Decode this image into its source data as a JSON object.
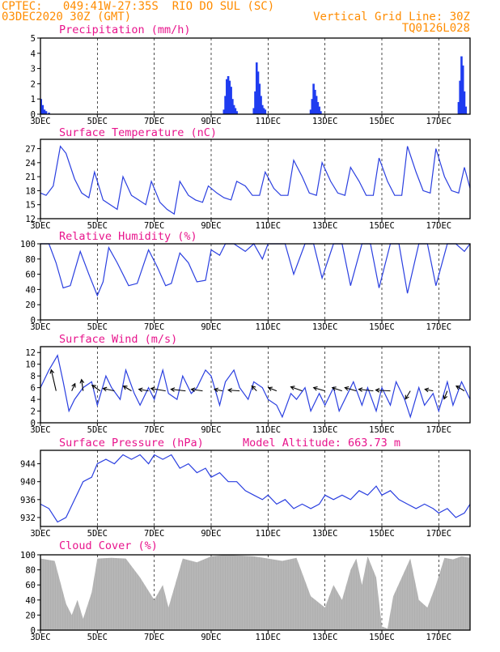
{
  "header": {
    "line1_left": "CPTEC:   049:41W-27:35S  RIO DO SUL (SC)",
    "line2_left": "03DEC2020 30Z (GMT)",
    "line1_right": "Vertical Grid Line: 30Z",
    "line2_right": "TQ0126L028"
  },
  "colors": {
    "header": "#ff8c00",
    "title": "#e8148c",
    "series": "#2a3fe0",
    "bars": "#1f3cf0",
    "cloud": "#b0b0b0"
  },
  "x_ticks": [
    "3DEC",
    "5DEC",
    "7DEC",
    "9DEC",
    "11DEC",
    "13DEC",
    "15DEC",
    "17DEC"
  ],
  "x_tick_days": [
    3,
    5,
    7,
    9,
    11,
    13,
    15,
    17
  ],
  "x_range_days": [
    3,
    18.1
  ],
  "chart_data": [
    {
      "id": "precip",
      "type": "bar",
      "title": "Precipitation (mm/h)",
      "ylim": [
        0,
        5
      ],
      "yticks": [
        0,
        1,
        2,
        3,
        4,
        5
      ],
      "x": [
        3.02,
        3.08,
        3.14,
        3.2,
        3.3,
        9.45,
        9.5,
        9.55,
        9.6,
        9.65,
        9.7,
        9.75,
        9.8,
        9.85,
        9.9,
        10.5,
        10.55,
        10.6,
        10.65,
        10.7,
        10.75,
        10.8,
        10.85,
        10.9,
        12.5,
        12.55,
        12.6,
        12.65,
        12.7,
        12.75,
        12.8,
        12.85,
        17.7,
        17.75,
        17.8,
        17.85,
        17.9,
        17.95
      ],
      "values": [
        1.0,
        0.6,
        0.3,
        0.2,
        0.1,
        0.3,
        1.2,
        2.3,
        2.5,
        2.2,
        1.8,
        1.0,
        0.6,
        0.4,
        0.2,
        0.4,
        1.5,
        3.4,
        2.8,
        2.0,
        1.2,
        0.6,
        0.4,
        0.3,
        0.3,
        1.0,
        2.0,
        1.6,
        1.2,
        0.8,
        0.5,
        0.2,
        0.8,
        2.2,
        3.8,
        3.2,
        1.5,
        0.5
      ]
    },
    {
      "id": "temp",
      "type": "line",
      "title": "Surface Temperature (nC)",
      "ylim": [
        12,
        29
      ],
      "yticks": [
        12,
        15,
        18,
        21,
        24,
        27
      ],
      "x": [
        3,
        3.2,
        3.45,
        3.7,
        3.9,
        4.2,
        4.45,
        4.7,
        4.9,
        5.2,
        5.45,
        5.7,
        5.9,
        6.2,
        6.45,
        6.7,
        6.9,
        7.2,
        7.45,
        7.7,
        7.9,
        8.2,
        8.45,
        8.7,
        8.9,
        9.2,
        9.45,
        9.7,
        9.9,
        10.2,
        10.45,
        10.7,
        10.9,
        11.2,
        11.45,
        11.7,
        11.9,
        12.2,
        12.45,
        12.7,
        12.9,
        13.2,
        13.45,
        13.7,
        13.9,
        14.2,
        14.45,
        14.7,
        14.9,
        15.2,
        15.45,
        15.7,
        15.9,
        16.2,
        16.45,
        16.7,
        16.9,
        17.2,
        17.45,
        17.7,
        17.9,
        18.1
      ],
      "values": [
        17.5,
        17,
        19,
        27.5,
        26,
        20.5,
        17.5,
        16.5,
        22,
        16,
        15,
        14,
        21,
        17,
        16,
        15,
        20,
        15.5,
        14,
        13,
        20,
        17,
        16,
        15.5,
        19,
        17.5,
        16.5,
        16,
        20,
        19,
        17,
        17,
        22,
        18.5,
        17,
        17,
        24.5,
        21,
        17.5,
        17,
        24,
        20,
        17.5,
        17,
        23,
        20,
        17,
        17,
        25,
        20,
        17,
        17,
        27.5,
        22,
        18,
        17.5,
        27,
        21,
        18,
        17.5,
        23,
        18.5
      ]
    },
    {
      "id": "rh",
      "type": "line",
      "title": "Relative Humidity (%)",
      "ylim": [
        0,
        100
      ],
      "yticks": [
        0,
        20,
        40,
        60,
        80,
        100
      ],
      "x": [
        3,
        3.3,
        3.55,
        3.8,
        4.05,
        4.4,
        4.7,
        5,
        5.2,
        5.4,
        5.7,
        6.1,
        6.4,
        6.8,
        7.1,
        7.4,
        7.6,
        7.9,
        8.2,
        8.5,
        8.8,
        9,
        9.3,
        9.5,
        9.8,
        10.2,
        10.5,
        10.8,
        11,
        11.3,
        11.6,
        11.9,
        12.3,
        12.6,
        12.9,
        13.3,
        13.6,
        13.9,
        14.3,
        14.6,
        14.9,
        15.3,
        15.6,
        15.9,
        16.3,
        16.6,
        16.9,
        17.3,
        17.6,
        17.9,
        18.1
      ],
      "values": [
        100,
        100,
        75,
        42,
        45,
        90,
        60,
        32,
        50,
        95,
        75,
        45,
        48,
        92,
        70,
        45,
        48,
        88,
        75,
        50,
        52,
        92,
        85,
        100,
        100,
        90,
        100,
        80,
        100,
        100,
        100,
        60,
        100,
        100,
        55,
        100,
        100,
        45,
        100,
        100,
        42,
        100,
        100,
        35,
        100,
        100,
        45,
        100,
        100,
        90,
        100
      ]
    },
    {
      "id": "wind",
      "type": "line",
      "title": "Surface Wind (m/s)",
      "ylim": [
        0,
        13
      ],
      "yticks": [
        0,
        2,
        4,
        6,
        8,
        10,
        12
      ],
      "x": [
        3,
        3.3,
        3.6,
        3.8,
        4.0,
        4.2,
        4.5,
        4.8,
        5.0,
        5.3,
        5.5,
        5.8,
        6.0,
        6.3,
        6.5,
        6.8,
        7.0,
        7.3,
        7.5,
        7.8,
        8.0,
        8.3,
        8.5,
        8.8,
        9.0,
        9.3,
        9.5,
        9.8,
        10.0,
        10.3,
        10.5,
        10.8,
        11.0,
        11.3,
        11.5,
        11.8,
        12.0,
        12.3,
        12.5,
        12.8,
        13.0,
        13.3,
        13.5,
        13.8,
        14.0,
        14.3,
        14.5,
        14.8,
        15.0,
        15.3,
        15.5,
        15.8,
        16.0,
        16.3,
        16.5,
        16.8,
        17.0,
        17.3,
        17.5,
        17.8,
        18.1
      ],
      "values": [
        6,
        9,
        11.5,
        7,
        2,
        4,
        6,
        7,
        3,
        8,
        6,
        4,
        9,
        5,
        3,
        6,
        4,
        9,
        5,
        4,
        8,
        5,
        6,
        9,
        8,
        3,
        7,
        9,
        6,
        4,
        7,
        6,
        4,
        3,
        1,
        5,
        4,
        6,
        2,
        5,
        3,
        6,
        2,
        5,
        7,
        3,
        6,
        2,
        6,
        3,
        7,
        4,
        1,
        6,
        3,
        5,
        2,
        7,
        3,
        7,
        4
      ]
    },
    {
      "id": "pressure",
      "type": "line",
      "title": "Surface Pressure (hPa)",
      "ylim": [
        930,
        947
      ],
      "yticks": [
        932,
        936,
        940,
        944
      ],
      "x": [
        3,
        3.3,
        3.6,
        3.9,
        4.2,
        4.5,
        4.8,
        5.0,
        5.3,
        5.6,
        5.9,
        6.2,
        6.5,
        6.8,
        7.0,
        7.3,
        7.6,
        7.9,
        8.2,
        8.5,
        8.8,
        9.0,
        9.3,
        9.6,
        9.9,
        10.2,
        10.5,
        10.8,
        11.0,
        11.3,
        11.6,
        11.9,
        12.2,
        12.5,
        12.8,
        13.0,
        13.3,
        13.6,
        13.9,
        14.2,
        14.5,
        14.8,
        15.0,
        15.3,
        15.6,
        15.9,
        16.2,
        16.5,
        16.8,
        17.0,
        17.3,
        17.6,
        17.9,
        18.1
      ],
      "values": [
        935,
        934,
        931,
        932,
        936,
        940,
        941,
        944,
        945,
        944,
        946,
        945,
        946,
        944,
        946,
        945,
        946,
        943,
        944,
        942,
        943,
        941,
        942,
        940,
        940,
        938,
        937,
        936,
        937,
        935,
        936,
        934,
        935,
        934,
        935,
        937,
        936,
        937,
        936,
        938,
        937,
        939,
        937,
        938,
        936,
        935,
        934,
        935,
        934,
        933,
        934,
        932,
        933,
        935
      ]
    },
    {
      "id": "cloud",
      "type": "area",
      "title": "Cloud Cover (%)",
      "ylim": [
        0,
        100
      ],
      "yticks": [
        0,
        20,
        40,
        60,
        80,
        100
      ],
      "x": [
        3,
        3.5,
        3.9,
        4.1,
        4.3,
        4.5,
        4.8,
        5.0,
        5.5,
        6.0,
        6.5,
        7.0,
        7.3,
        7.5,
        8.0,
        8.5,
        9.0,
        9.5,
        10.0,
        10.5,
        11.0,
        11.5,
        12.0,
        12.5,
        13.0,
        13.3,
        13.6,
        13.9,
        14.1,
        14.3,
        14.5,
        14.8,
        15.0,
        15.2,
        15.4,
        15.7,
        16.0,
        16.3,
        16.6,
        16.9,
        17.2,
        17.5,
        17.8,
        18.1
      ],
      "values": [
        95,
        92,
        35,
        20,
        40,
        15,
        50,
        95,
        96,
        95,
        70,
        40,
        60,
        30,
        95,
        90,
        98,
        100,
        99,
        98,
        95,
        92,
        96,
        45,
        30,
        60,
        40,
        80,
        95,
        60,
        98,
        70,
        5,
        2,
        45,
        70,
        95,
        40,
        30,
        60,
        96,
        94,
        98,
        96
      ]
    }
  ],
  "pressure_annotation": "Model Altitude: 663.73 m",
  "wind_arrows": [
    {
      "x": 3.55,
      "dx": -6,
      "dy": -26
    },
    {
      "x": 4.1,
      "dx": 4,
      "dy": -9
    },
    {
      "x": 4.5,
      "dx": -2,
      "dy": -14
    },
    {
      "x": 5.1,
      "dx": -10,
      "dy": -7
    },
    {
      "x": 5.6,
      "dx": -14,
      "dy": -3
    },
    {
      "x": 6.2,
      "dx": -10,
      "dy": -6
    },
    {
      "x": 6.8,
      "dx": -12,
      "dy": -2
    },
    {
      "x": 7.4,
      "dx": -18,
      "dy": -3
    },
    {
      "x": 8.1,
      "dx": -18,
      "dy": -2
    },
    {
      "x": 8.7,
      "dx": -14,
      "dy": -2
    },
    {
      "x": 9.4,
      "dx": -10,
      "dy": -2
    },
    {
      "x": 10.0,
      "dx": -14,
      "dy": -1
    },
    {
      "x": 10.6,
      "dx": -6,
      "dy": -6
    },
    {
      "x": 11.3,
      "dx": -10,
      "dy": -4
    },
    {
      "x": 12.2,
      "dx": -14,
      "dy": -5
    },
    {
      "x": 13.0,
      "dx": -14,
      "dy": -4
    },
    {
      "x": 13.6,
      "dx": -12,
      "dy": -4
    },
    {
      "x": 14.1,
      "dx": -14,
      "dy": -4
    },
    {
      "x": 14.7,
      "dx": -18,
      "dy": -2
    },
    {
      "x": 15.3,
      "dx": -18,
      "dy": -1
    },
    {
      "x": 16.0,
      "dx": -6,
      "dy": 10
    },
    {
      "x": 16.8,
      "dx": -10,
      "dy": -2
    },
    {
      "x": 17.3,
      "dx": -4,
      "dy": 10
    },
    {
      "x": 17.9,
      "dx": -10,
      "dy": -6
    }
  ]
}
